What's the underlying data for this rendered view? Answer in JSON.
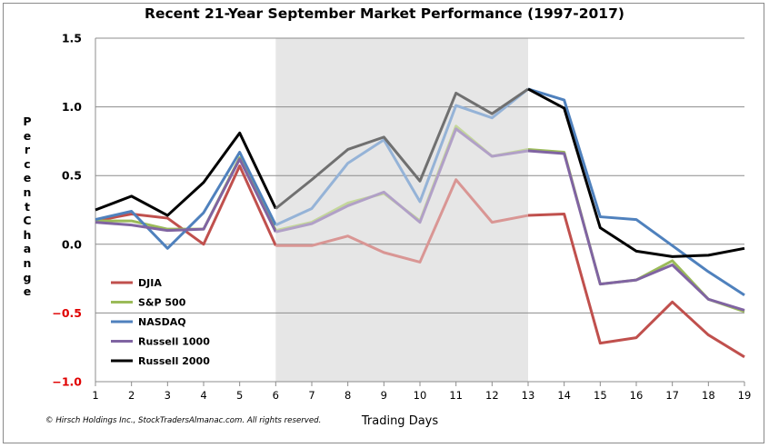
{
  "chart_data": {
    "type": "line",
    "title": "Recent 21-Year September Market Performance (1997-2017)",
    "xlabel": "Trading Days",
    "ylabel": "Percent Change",
    "x": [
      1,
      2,
      3,
      4,
      5,
      6,
      7,
      8,
      9,
      10,
      11,
      12,
      13,
      14,
      15,
      16,
      17,
      18,
      19
    ],
    "ylim": [
      -1.0,
      1.5
    ],
    "yticks": [
      "1.5",
      "1.0",
      "0.5",
      "0.0",
      "−0.5",
      "−1.0"
    ],
    "ytick_values": [
      1.5,
      1.0,
      0.5,
      0.0,
      -0.5,
      -1.0
    ],
    "grid": true,
    "shaded_region": [
      6,
      13
    ],
    "legend_position": "lower-left",
    "copyright": "© Hirsch Holdings Inc., StockTradersAlmanac.com. All rights reserved.",
    "series": [
      {
        "name": "DJIA",
        "color": "#c0504d",
        "shaded_color": "#d99694",
        "values": [
          0.17,
          0.22,
          0.19,
          0.0,
          0.57,
          -0.01,
          -0.01,
          0.06,
          -0.06,
          -0.13,
          0.47,
          0.16,
          0.21,
          0.22,
          -0.72,
          -0.68,
          -0.42,
          -0.66,
          -0.82
        ]
      },
      {
        "name": "S&P 500",
        "color": "#9bbb59",
        "shaded_color": "#c4d79b",
        "values": [
          0.17,
          0.17,
          0.11,
          0.11,
          0.63,
          0.1,
          0.16,
          0.3,
          0.37,
          0.17,
          0.86,
          0.64,
          0.69,
          0.67,
          -0.29,
          -0.26,
          -0.12,
          -0.4,
          -0.49
        ]
      },
      {
        "name": "NASDAQ",
        "color": "#4f81bd",
        "shaded_color": "#95b3d7",
        "values": [
          0.18,
          0.24,
          -0.03,
          0.23,
          0.67,
          0.14,
          0.26,
          0.59,
          0.76,
          0.31,
          1.01,
          0.92,
          1.13,
          1.05,
          0.2,
          0.18,
          -0.01,
          -0.2,
          -0.37
        ]
      },
      {
        "name": "Russell 1000",
        "color": "#8064a2",
        "shaded_color": "#b1a0c7",
        "values": [
          0.16,
          0.14,
          0.1,
          0.11,
          0.62,
          0.09,
          0.15,
          0.28,
          0.38,
          0.16,
          0.84,
          0.64,
          0.68,
          0.66,
          -0.29,
          -0.26,
          -0.15,
          -0.4,
          -0.48
        ]
      },
      {
        "name": "Russell 2000",
        "color": "#000000",
        "shaded_color": "#707070",
        "values": [
          0.25,
          0.35,
          0.21,
          0.45,
          0.81,
          0.26,
          0.47,
          0.69,
          0.78,
          0.46,
          1.1,
          0.95,
          1.13,
          0.99,
          0.12,
          -0.05,
          -0.09,
          -0.08,
          -0.03
        ]
      }
    ]
  }
}
